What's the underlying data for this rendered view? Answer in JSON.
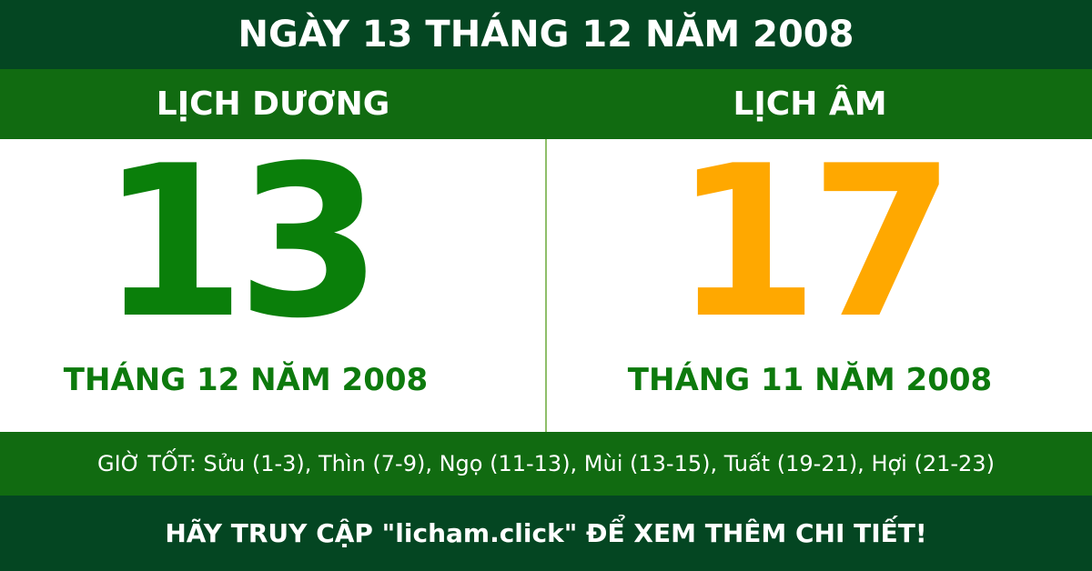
{
  "title": "NGÀY 13 THÁNG 12 NĂM 2008",
  "solar": {
    "label": "LỊCH DƯƠNG",
    "day": "13",
    "month_year": "THÁNG 12 NĂM 2008",
    "color": "#0a7f0a"
  },
  "lunar": {
    "label": "LỊCH ÂM",
    "day": "17",
    "month_year": "THÁNG 11 NĂM 2008",
    "color": "#ffa800"
  },
  "good_hours": "GIỜ TỐT: Sửu (1-3), Thìn (7-9), Ngọ (11-13), Mùi (13-15), Tuất (19-21), Hợi (21-23)",
  "footer": "HÃY TRUY CẬP \"licham.click\" ĐỂ XEM THÊM CHI TIẾT!"
}
